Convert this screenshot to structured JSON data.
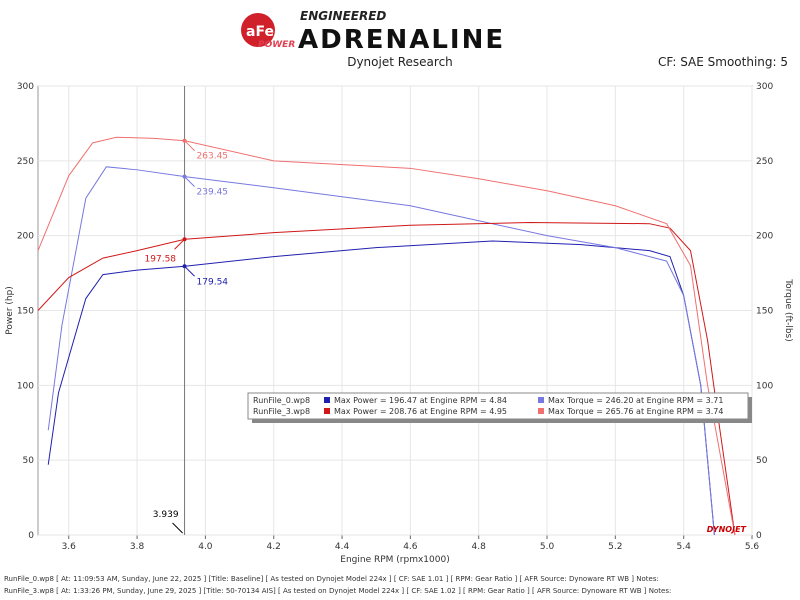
{
  "header": {
    "logo_text": "aFe POWER ENGINEERED ADRENALINE",
    "subtitle": "Dynojet Research",
    "cf": "CF: SAE Smoothing: 5"
  },
  "colors": {
    "rf0_power": "#2020b0",
    "rf0_torque": "#7878e0",
    "rf3_power": "#d01818",
    "rf3_torque": "#f07070"
  },
  "chart_data": {
    "type": "line",
    "xlabel": "Engine RPM (rpmx1000)",
    "ylabel": "Power (hp)",
    "y2label": "Torque (ft-lbs)",
    "xlim": [
      3.51,
      5.6
    ],
    "ylim": [
      0,
      300
    ],
    "y2lim": [
      0,
      300
    ],
    "xticks": [
      "3.6",
      "3.8",
      "4.0",
      "4.2",
      "4.4",
      "4.6",
      "4.8",
      "5.0",
      "5.2",
      "5.4",
      "5.6"
    ],
    "yticks": [
      "0",
      "50",
      "100",
      "150",
      "200",
      "250",
      "300"
    ],
    "grid": true,
    "cursor": {
      "x": 3.939,
      "label": "3.939",
      "values": [
        "263.45",
        "239.45",
        "197.58",
        "179.54"
      ]
    },
    "series": [
      {
        "name": "RunFile_0.wp8 Power",
        "color": "#2020b0",
        "x": [
          3.54,
          3.57,
          3.65,
          3.7,
          3.8,
          3.94,
          4.2,
          4.5,
          4.84,
          5.1,
          5.3,
          5.36,
          5.4,
          5.45,
          5.49
        ],
        "y": [
          47,
          95,
          158,
          174,
          177,
          179.54,
          186,
          192,
          196.47,
          194,
          190,
          186,
          160,
          100,
          0
        ]
      },
      {
        "name": "RunFile_0.wp8 Torque",
        "color": "#7878e0",
        "x": [
          3.54,
          3.58,
          3.65,
          3.71,
          3.8,
          3.94,
          4.2,
          4.6,
          4.8,
          5.0,
          5.2,
          5.35,
          5.4,
          5.45,
          5.49
        ],
        "y": [
          70,
          140,
          225,
          246,
          244,
          239.45,
          232,
          220,
          210,
          200,
          192,
          183,
          160,
          100,
          0
        ]
      },
      {
        "name": "RunFile_3.wp8 Power",
        "color": "#d01818",
        "x": [
          3.51,
          3.6,
          3.7,
          3.8,
          3.94,
          4.2,
          4.6,
          4.95,
          5.3,
          5.36,
          5.42,
          5.47,
          5.5,
          5.55
        ],
        "y": [
          150,
          172,
          185,
          190,
          197.58,
          202,
          207,
          208.76,
          208,
          205,
          190,
          130,
          80,
          0
        ]
      },
      {
        "name": "RunFile_3.wp8 Torque",
        "color": "#f07070",
        "x": [
          3.51,
          3.6,
          3.67,
          3.74,
          3.85,
          3.94,
          4.2,
          4.6,
          4.8,
          5.0,
          5.2,
          5.35,
          5.42,
          5.47,
          5.55
        ],
        "y": [
          190,
          240,
          262,
          265.76,
          265,
          263.45,
          250,
          245,
          238,
          230,
          220,
          208,
          180,
          100,
          0
        ]
      }
    ],
    "legend": {
      "placement": "center-right",
      "rows": [
        {
          "file": "RunFile_0.wp8",
          "power": "Max Power = 196.47 at Engine RPM = 4.84",
          "torque": "Max Torque = 246.20 at Engine RPM = 3.71"
        },
        {
          "file": "RunFile_3.wp8",
          "power": "Max Power = 208.76 at Engine RPM = 4.95",
          "torque": "Max Torque = 265.76 at Engine RPM = 3.74"
        }
      ]
    },
    "watermark": "DYNOJET"
  },
  "notes": [
    "RunFile_0.wp8 [ At: 11:09:53 AM, Sunday, June 22, 2025 ] [Title: Baseline]  [ As tested on Dynojet Model 224x ] [ CF: SAE 1.01 ] [ RPM: Gear Ratio ] [ AFR Source: Dynoware RT WB ] Notes:",
    "RunFile_3.wp8 [ At: 1:33:26 PM, Sunday, June 29, 2025 ] [Title: 50-70134 AIS]  [ As tested on Dynojet Model 224x ] [ CF: SAE 1.02 ] [ RPM: Gear Ratio ] [ AFR Source: Dynoware RT WB ] Notes:"
  ]
}
